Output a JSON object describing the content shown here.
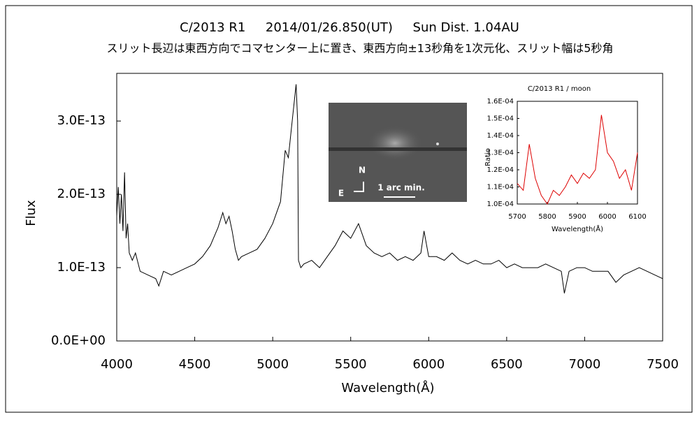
{
  "chart_data": [
    {
      "type": "line",
      "title": "C/2013 R1     2014/01/26.850(UT)     Sun Dist. 1.04AU",
      "subtitle": "スリット長辺は東西方向でコマセンター上に置き、東西方向±13秒角を1次元化、スリット幅は5秒角",
      "xlabel": "Wavelength(Å)",
      "ylabel": "Flux",
      "image_labels": [
        "N",
        "E",
        "1 arc min."
      ],
      "xlim": [
        4000,
        7500
      ],
      "xticks": [
        4000,
        4500,
        5000,
        5500,
        6000,
        6500,
        7000,
        7500
      ],
      "ylim": [
        0,
        3.65e-13
      ],
      "yticks": [
        {
          "value": 0,
          "label": "0.0E+00"
        },
        {
          "value": 1e-13,
          "label": "1.0E-13"
        },
        {
          "value": 2e-13,
          "label": "2.0E-13"
        },
        {
          "value": 3e-13,
          "label": "3.0E-13"
        }
      ],
      "series": [
        {
          "color": "#000000",
          "x": [
            4000,
            4010,
            4020,
            4030,
            4040,
            4050,
            4060,
            4070,
            4080,
            4100,
            4120,
            4150,
            4200,
            4250,
            4270,
            4300,
            4350,
            4400,
            4450,
            4500,
            4550,
            4600,
            4650,
            4680,
            4700,
            4720,
            4740,
            4760,
            4780,
            4800,
            4850,
            4900,
            4950,
            5000,
            5050,
            5080,
            5100,
            5120,
            5150,
            5160,
            5165,
            5180,
            5200,
            5250,
            5300,
            5350,
            5400,
            5450,
            5500,
            5550,
            5600,
            5650,
            5700,
            5750,
            5800,
            5850,
            5900,
            5950,
            5970,
            6000,
            6050,
            6100,
            6150,
            6200,
            6250,
            6300,
            6350,
            6400,
            6450,
            6500,
            6550,
            6600,
            6650,
            6700,
            6750,
            6800,
            6850,
            6870,
            6900,
            6950,
            7000,
            7050,
            7100,
            7150,
            7200,
            7250,
            7300,
            7350,
            7400,
            7450,
            7500
          ],
          "values": [
            1.7e-13,
            2.1e-13,
            1.6e-13,
            2e-13,
            1.5e-13,
            2.3e-13,
            1.4e-13,
            1.6e-13,
            1.2e-13,
            1.1e-13,
            1.2e-13,
            9.5e-14,
            9e-14,
            8.5e-14,
            7.5e-14,
            9.5e-14,
            9e-14,
            9.5e-14,
            1e-13,
            1.05e-13,
            1.15e-13,
            1.3e-13,
            1.55e-13,
            1.75e-13,
            1.6e-13,
            1.7e-13,
            1.5e-13,
            1.25e-13,
            1.1e-13,
            1.15e-13,
            1.2e-13,
            1.25e-13,
            1.4e-13,
            1.6e-13,
            1.9e-13,
            2.6e-13,
            2.5e-13,
            2.9e-13,
            3.5e-13,
            3e-13,
            1.1e-13,
            1e-13,
            1.05e-13,
            1.1e-13,
            1e-13,
            1.15e-13,
            1.3e-13,
            1.5e-13,
            1.4e-13,
            1.6e-13,
            1.3e-13,
            1.2e-13,
            1.15e-13,
            1.2e-13,
            1.1e-13,
            1.15e-13,
            1.1e-13,
            1.2e-13,
            1.5e-13,
            1.15e-13,
            1.15e-13,
            1.1e-13,
            1.2e-13,
            1.1e-13,
            1.05e-13,
            1.1e-13,
            1.05e-13,
            1.05e-13,
            1.1e-13,
            1e-13,
            1.05e-13,
            1e-13,
            1e-13,
            1e-13,
            1.05e-13,
            1e-13,
            9.5e-14,
            6.5e-14,
            9.5e-14,
            1e-13,
            1e-13,
            9.5e-14,
            9.5e-14,
            9.5e-14,
            8e-14,
            9e-14,
            9.5e-14,
            1e-13,
            9.5e-14,
            9e-14,
            8.5e-14
          ]
        }
      ]
    },
    {
      "type": "line",
      "title": "C/2013 R1 / moon",
      "xlabel": "Wavelength(Å)",
      "ylabel": "Ratio",
      "xlim": [
        5700,
        6100
      ],
      "xticks": [
        5700,
        5800,
        5900,
        6000,
        6100
      ],
      "ylim": [
        0.0001,
        0.00016
      ],
      "yticks": [
        {
          "value": 0.0001,
          "label": "1.0E-04"
        },
        {
          "value": 0.00011,
          "label": "1.1E-04"
        },
        {
          "value": 0.00012,
          "label": "1.2E-04"
        },
        {
          "value": 0.00013,
          "label": "1.3E-04"
        },
        {
          "value": 0.00014,
          "label": "1.4E-04"
        },
        {
          "value": 0.00015,
          "label": "1.5E-04"
        },
        {
          "value": 0.00016,
          "label": "1.6E-04"
        }
      ],
      "series": [
        {
          "color": "#dd0000",
          "x": [
            5700,
            5720,
            5740,
            5760,
            5780,
            5800,
            5820,
            5840,
            5860,
            5880,
            5900,
            5920,
            5940,
            5960,
            5980,
            6000,
            6020,
            6040,
            6060,
            6080,
            6100
          ],
          "values": [
            0.000112,
            0.000108,
            0.000135,
            0.000115,
            0.000105,
            0.0001,
            0.000108,
            0.000105,
            0.00011,
            0.000117,
            0.000112,
            0.000118,
            0.000115,
            0.00012,
            0.000152,
            0.00013,
            0.000125,
            0.000115,
            0.00012,
            0.000108,
            0.00013
          ]
        }
      ]
    }
  ]
}
